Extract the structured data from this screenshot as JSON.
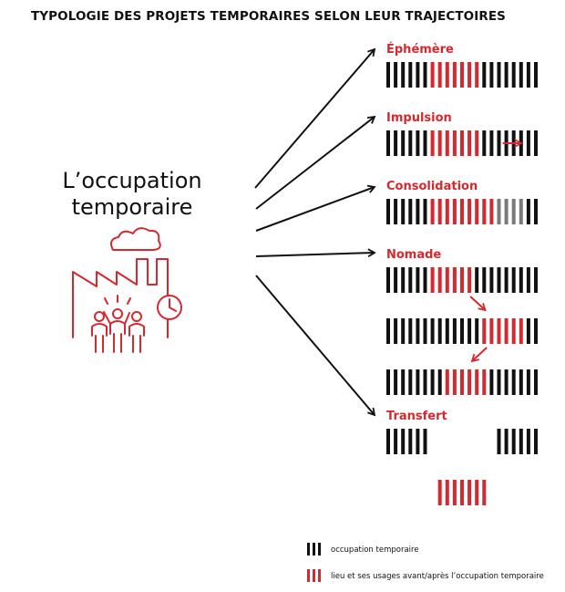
{
  "title": "TYPOLOGIE DES PROJETS TEMPORAIRES SELON LEUR TRAJECTOIRES",
  "center_label": [
    "L’occupation",
    "temporaire"
  ],
  "colors": {
    "black": "#111111",
    "red": "#d7282f",
    "grey": "#7a7a7a",
    "text": "#111111"
  },
  "categories": [
    {
      "name": "Éphémère",
      "rows": [
        {
          "offset": 0,
          "bars": "kkkkkkrrrrrrrkkkkkkkk"
        }
      ]
    },
    {
      "name": "Impulsion",
      "rows": [
        {
          "offset": 0,
          "bars": "kkkkkkrrrrrrrkkkkkkkk",
          "arrow": "right"
        }
      ]
    },
    {
      "name": "Consolidation",
      "rows": [
        {
          "offset": 0,
          "bars": "kkkkkkrrrrrrrrrggggkk"
        }
      ]
    },
    {
      "name": "Nomade",
      "rows": [
        {
          "offset": 0,
          "bars": "kkkkkkrrrrrrkkkkkkkkk",
          "arrow": "down-right"
        },
        {
          "offset": 0,
          "bars": "kkkkkkkkkkkkkrrrrrrkk",
          "arrow": "down-left"
        },
        {
          "offset": 0,
          "bars": "kkkkkkkkrrrrrrkkkkkkk"
        }
      ]
    },
    {
      "name": "Transfert",
      "rows": [
        {
          "offset": 0,
          "bars": "kkkkkk",
          "second_offset": 15,
          "second_bars": "kkkkkk"
        },
        {
          "offset": 7,
          "bars": "rrrrrrr"
        }
      ]
    }
  ],
  "legend": [
    {
      "color": "black",
      "label": "occupation temporaire"
    },
    {
      "color": "red",
      "label": "lieu et ses usages avant/après l’occupation temporaire"
    }
  ]
}
